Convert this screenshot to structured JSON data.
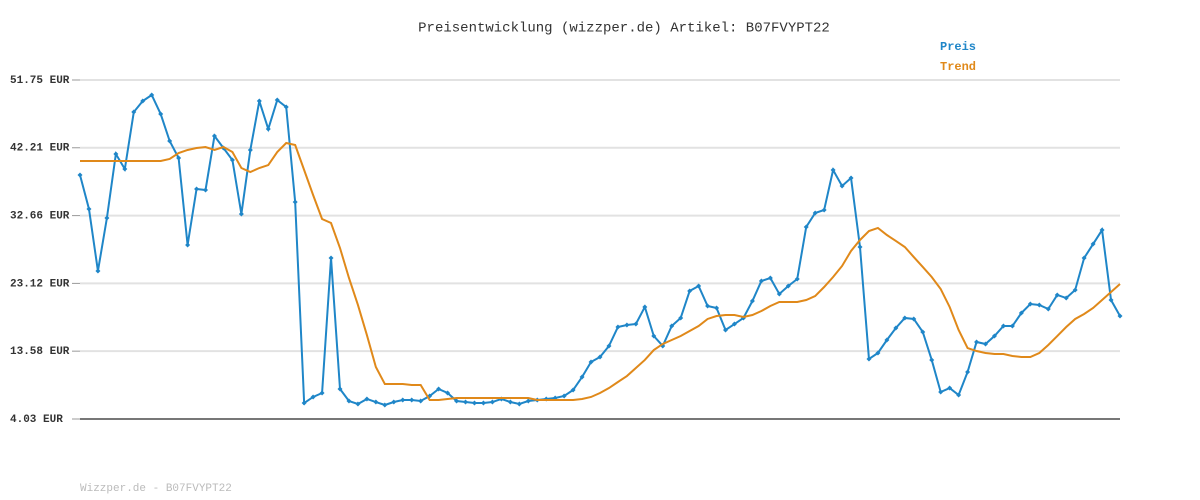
{
  "chart_data": {
    "type": "line",
    "title": "Preisentwicklung (wizzper.de) Artikel: B07FVYPT22",
    "footer": "Wizzper.de - B07FVYPT22",
    "grid": true,
    "legend": "top-right",
    "ylim": [
      4.03,
      51.75
    ],
    "yticks": [
      {
        "value": 4.03,
        "label": "4.03 EUR"
      },
      {
        "value": 13.58,
        "label": "13.58 EUR"
      },
      {
        "value": 23.12,
        "label": "23.12 EUR"
      },
      {
        "value": 32.66,
        "label": "32.66 EUR"
      },
      {
        "value": 42.21,
        "label": "42.21 EUR"
      },
      {
        "value": 51.75,
        "label": "51.75 EUR"
      }
    ],
    "series": [
      {
        "name": "Preis",
        "color": "#1f86c8",
        "markers": true,
        "values": [
          38.38,
          33.59,
          24.86,
          32.32,
          41.33,
          39.22,
          47.24,
          48.79,
          49.64,
          46.96,
          43.16,
          40.77,
          28.52,
          36.41,
          36.27,
          43.87,
          42.18,
          40.49,
          32.89,
          41.9,
          48.79,
          44.85,
          48.93,
          47.95,
          34.58,
          6.28,
          7.13,
          7.69,
          26.69,
          8.25,
          6.56,
          6.14,
          6.85,
          6.42,
          6.0,
          6.42,
          6.7,
          6.7,
          6.56,
          7.27,
          8.25,
          7.69,
          6.56,
          6.42,
          6.28,
          6.28,
          6.42,
          6.85,
          6.42,
          6.14,
          6.56,
          6.7,
          6.85,
          6.99,
          7.27,
          8.11,
          9.94,
          12.05,
          12.76,
          14.31,
          16.98,
          17.26,
          17.4,
          19.8,
          15.71,
          14.31,
          17.12,
          18.25,
          22.05,
          22.75,
          19.94,
          19.66,
          16.56,
          17.4,
          18.25,
          20.64,
          23.46,
          23.88,
          21.63,
          22.75,
          23.74,
          31.06,
          33.03,
          33.45,
          39.08,
          36.83,
          37.95,
          28.24,
          12.48,
          13.32,
          15.15,
          16.84,
          18.25,
          18.11,
          16.28,
          12.34,
          7.83,
          8.39,
          7.41,
          10.65,
          14.87,
          14.59,
          15.71,
          17.12,
          17.12,
          18.95,
          20.22,
          20.08,
          19.51,
          21.49,
          21.06,
          22.19,
          26.69,
          28.66,
          30.63,
          20.78,
          18.53
        ]
      },
      {
        "name": "Trend",
        "color": "#e0891a",
        "markers": false,
        "values": [
          40.35,
          40.35,
          40.35,
          40.35,
          40.35,
          40.35,
          40.35,
          40.35,
          40.35,
          40.35,
          40.63,
          41.47,
          41.9,
          42.18,
          42.32,
          41.9,
          42.32,
          41.61,
          39.36,
          38.8,
          39.36,
          39.78,
          41.61,
          42.88,
          42.6,
          39.08,
          35.56,
          32.18,
          31.62,
          28.1,
          23.88,
          20.08,
          15.85,
          11.35,
          8.96,
          8.96,
          8.96,
          8.82,
          8.82,
          6.7,
          6.7,
          6.85,
          6.99,
          6.99,
          6.99,
          6.99,
          6.99,
          6.99,
          6.99,
          6.99,
          6.99,
          6.7,
          6.7,
          6.7,
          6.7,
          6.7,
          6.85,
          7.13,
          7.69,
          8.39,
          9.24,
          10.08,
          11.21,
          12.34,
          13.74,
          14.59,
          15.15,
          15.71,
          16.42,
          17.12,
          18.11,
          18.53,
          18.67,
          18.67,
          18.39,
          18.67,
          19.23,
          19.94,
          20.5,
          20.5,
          20.5,
          20.78,
          21.34,
          22.61,
          24.02,
          25.57,
          27.68,
          29.23,
          30.49,
          30.92,
          29.93,
          29.09,
          28.24,
          26.83,
          25.43,
          24.02,
          22.33,
          19.8,
          16.56,
          14.02,
          13.6,
          13.32,
          13.18,
          13.18,
          12.9,
          12.76,
          12.76,
          13.32,
          14.45,
          15.71,
          16.98,
          18.11,
          18.81,
          19.66,
          20.78,
          21.91,
          23.03
        ]
      }
    ]
  }
}
